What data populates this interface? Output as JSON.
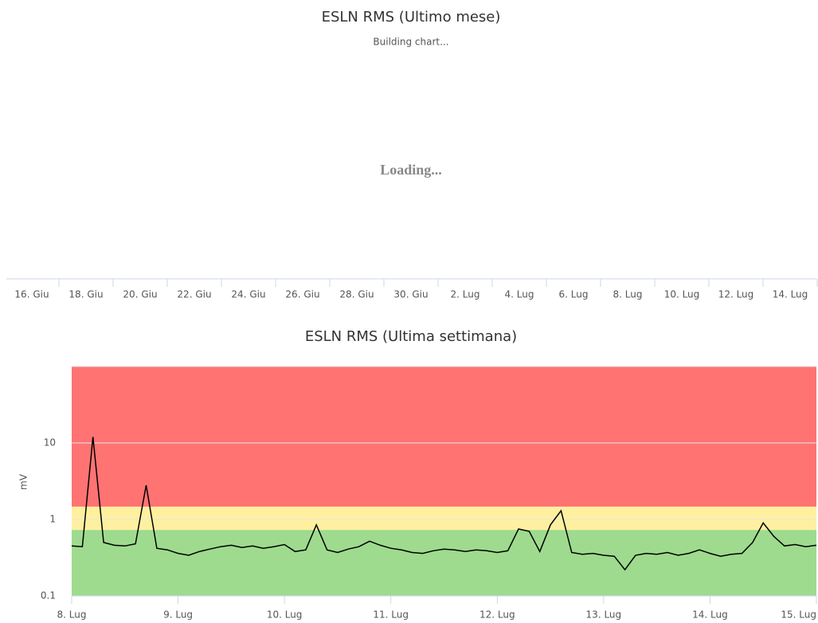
{
  "chart_data": [
    {
      "type": "line",
      "title": "ESLN RMS (Ultimo mese)",
      "subtitle": "Building chart...",
      "loading": "Loading...",
      "categories": [
        "16. Giu",
        "18. Giu",
        "20. Giu",
        "22. Giu",
        "24. Giu",
        "26. Giu",
        "28. Giu",
        "30. Giu",
        "2. Lug",
        "4. Lug",
        "6. Lug",
        "8. Lug",
        "10. Lug",
        "12. Lug",
        "14. Lug"
      ]
    },
    {
      "type": "line",
      "title": "ESLN RMS (Ultima settimana)",
      "y_label": "mV",
      "log_scale": true,
      "grid": true,
      "color": "#000000",
      "ylim": [
        0.1,
        100
      ],
      "yticks": [
        0.1,
        1,
        10
      ],
      "xlim": [
        8,
        15
      ],
      "xticks": [
        {
          "value": 8,
          "label": "8. Lug"
        },
        {
          "value": 9,
          "label": "9. Lug"
        },
        {
          "value": 10,
          "label": "10. Lug"
        },
        {
          "value": 11,
          "label": "11. Lug"
        },
        {
          "value": 12,
          "label": "12. Lug"
        },
        {
          "value": 13,
          "label": "13. Lug"
        },
        {
          "value": 14,
          "label": "14. Lug"
        },
        {
          "value": 15,
          "label": "15. Lug"
        }
      ],
      "bands": [
        {
          "from": 0.1,
          "to": 0.73,
          "color": "#9edb8e"
        },
        {
          "from": 0.73,
          "to": 1.47,
          "color": "#fff0a0"
        },
        {
          "from": 1.47,
          "to": 100,
          "color": "#ff7373"
        }
      ],
      "x": [
        8.0,
        8.1,
        8.2,
        8.3,
        8.4,
        8.5,
        8.6,
        8.7,
        8.8,
        8.9,
        9.0,
        9.1,
        9.2,
        9.3,
        9.4,
        9.5,
        9.6,
        9.7,
        9.8,
        9.9,
        10.0,
        10.1,
        10.2,
        10.3,
        10.4,
        10.5,
        10.6,
        10.7,
        10.8,
        10.9,
        11.0,
        11.1,
        11.2,
        11.3,
        11.4,
        11.5,
        11.6,
        11.7,
        11.8,
        11.9,
        12.0,
        12.1,
        12.2,
        12.3,
        12.4,
        12.5,
        12.6,
        12.7,
        12.8,
        12.9,
        13.0,
        13.1,
        13.2,
        13.3,
        13.4,
        13.5,
        13.6,
        13.7,
        13.8,
        13.9,
        14.0,
        14.1,
        14.2,
        14.3,
        14.4,
        14.5,
        14.6,
        14.7,
        14.8,
        14.9,
        15.0
      ],
      "values": [
        0.45,
        0.44,
        12,
        0.5,
        0.46,
        0.45,
        0.48,
        2.8,
        0.42,
        0.4,
        0.36,
        0.34,
        0.38,
        0.41,
        0.44,
        0.46,
        0.43,
        0.45,
        0.42,
        0.44,
        0.47,
        0.38,
        0.4,
        0.85,
        0.4,
        0.37,
        0.41,
        0.44,
        0.52,
        0.46,
        0.42,
        0.4,
        0.37,
        0.36,
        0.39,
        0.41,
        0.4,
        0.38,
        0.4,
        0.39,
        0.37,
        0.39,
        0.75,
        0.7,
        0.38,
        0.85,
        1.3,
        0.37,
        0.35,
        0.36,
        0.34,
        0.33,
        0.22,
        0.34,
        0.36,
        0.35,
        0.37,
        0.34,
        0.36,
        0.4,
        0.36,
        0.33,
        0.35,
        0.36,
        0.5,
        0.9,
        0.6,
        0.45,
        0.47,
        0.44,
        0.46
      ]
    }
  ]
}
